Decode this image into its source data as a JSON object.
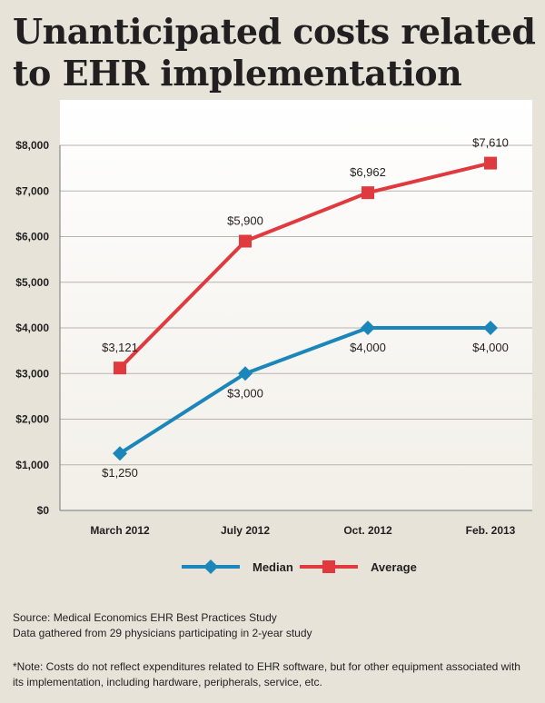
{
  "title": "Unanticipated costs related to EHR implementation",
  "chart_data": {
    "type": "line",
    "categories": [
      "March 2012",
      "July 2012",
      "Oct. 2012",
      "Feb. 2013"
    ],
    "series": [
      {
        "name": "Median",
        "values": [
          1250,
          3000,
          4000,
          4000
        ],
        "labels": [
          "$1,250",
          "$3,000",
          "$4,000",
          "$4,000"
        ],
        "color": "#1b86b9",
        "marker": "diamond"
      },
      {
        "name": "Average",
        "values": [
          3121,
          5900,
          6962,
          7610
        ],
        "labels": [
          "$3,121",
          "$5,900",
          "$6,962",
          "$7,610"
        ],
        "color": "#e03a3e",
        "marker": "square"
      }
    ],
    "ylim": [
      0,
      8000
    ],
    "yticks": [
      "$0",
      "$1,000",
      "$2,000",
      "$3,000",
      "$4,000",
      "$5,000",
      "$6,000",
      "$7,000",
      "$8,000"
    ],
    "grid": true,
    "legend": "bottom"
  },
  "footer": {
    "source_line1": "Source: Medical Economics EHR Best Practices Study",
    "source_line2": "Data gathered from 29 physicians participating in 2-year study",
    "note": "*Note: Costs do not reflect expenditures related to EHR software, but for other equipment associated with its implementation, including hardware, peripherals, service, etc."
  }
}
